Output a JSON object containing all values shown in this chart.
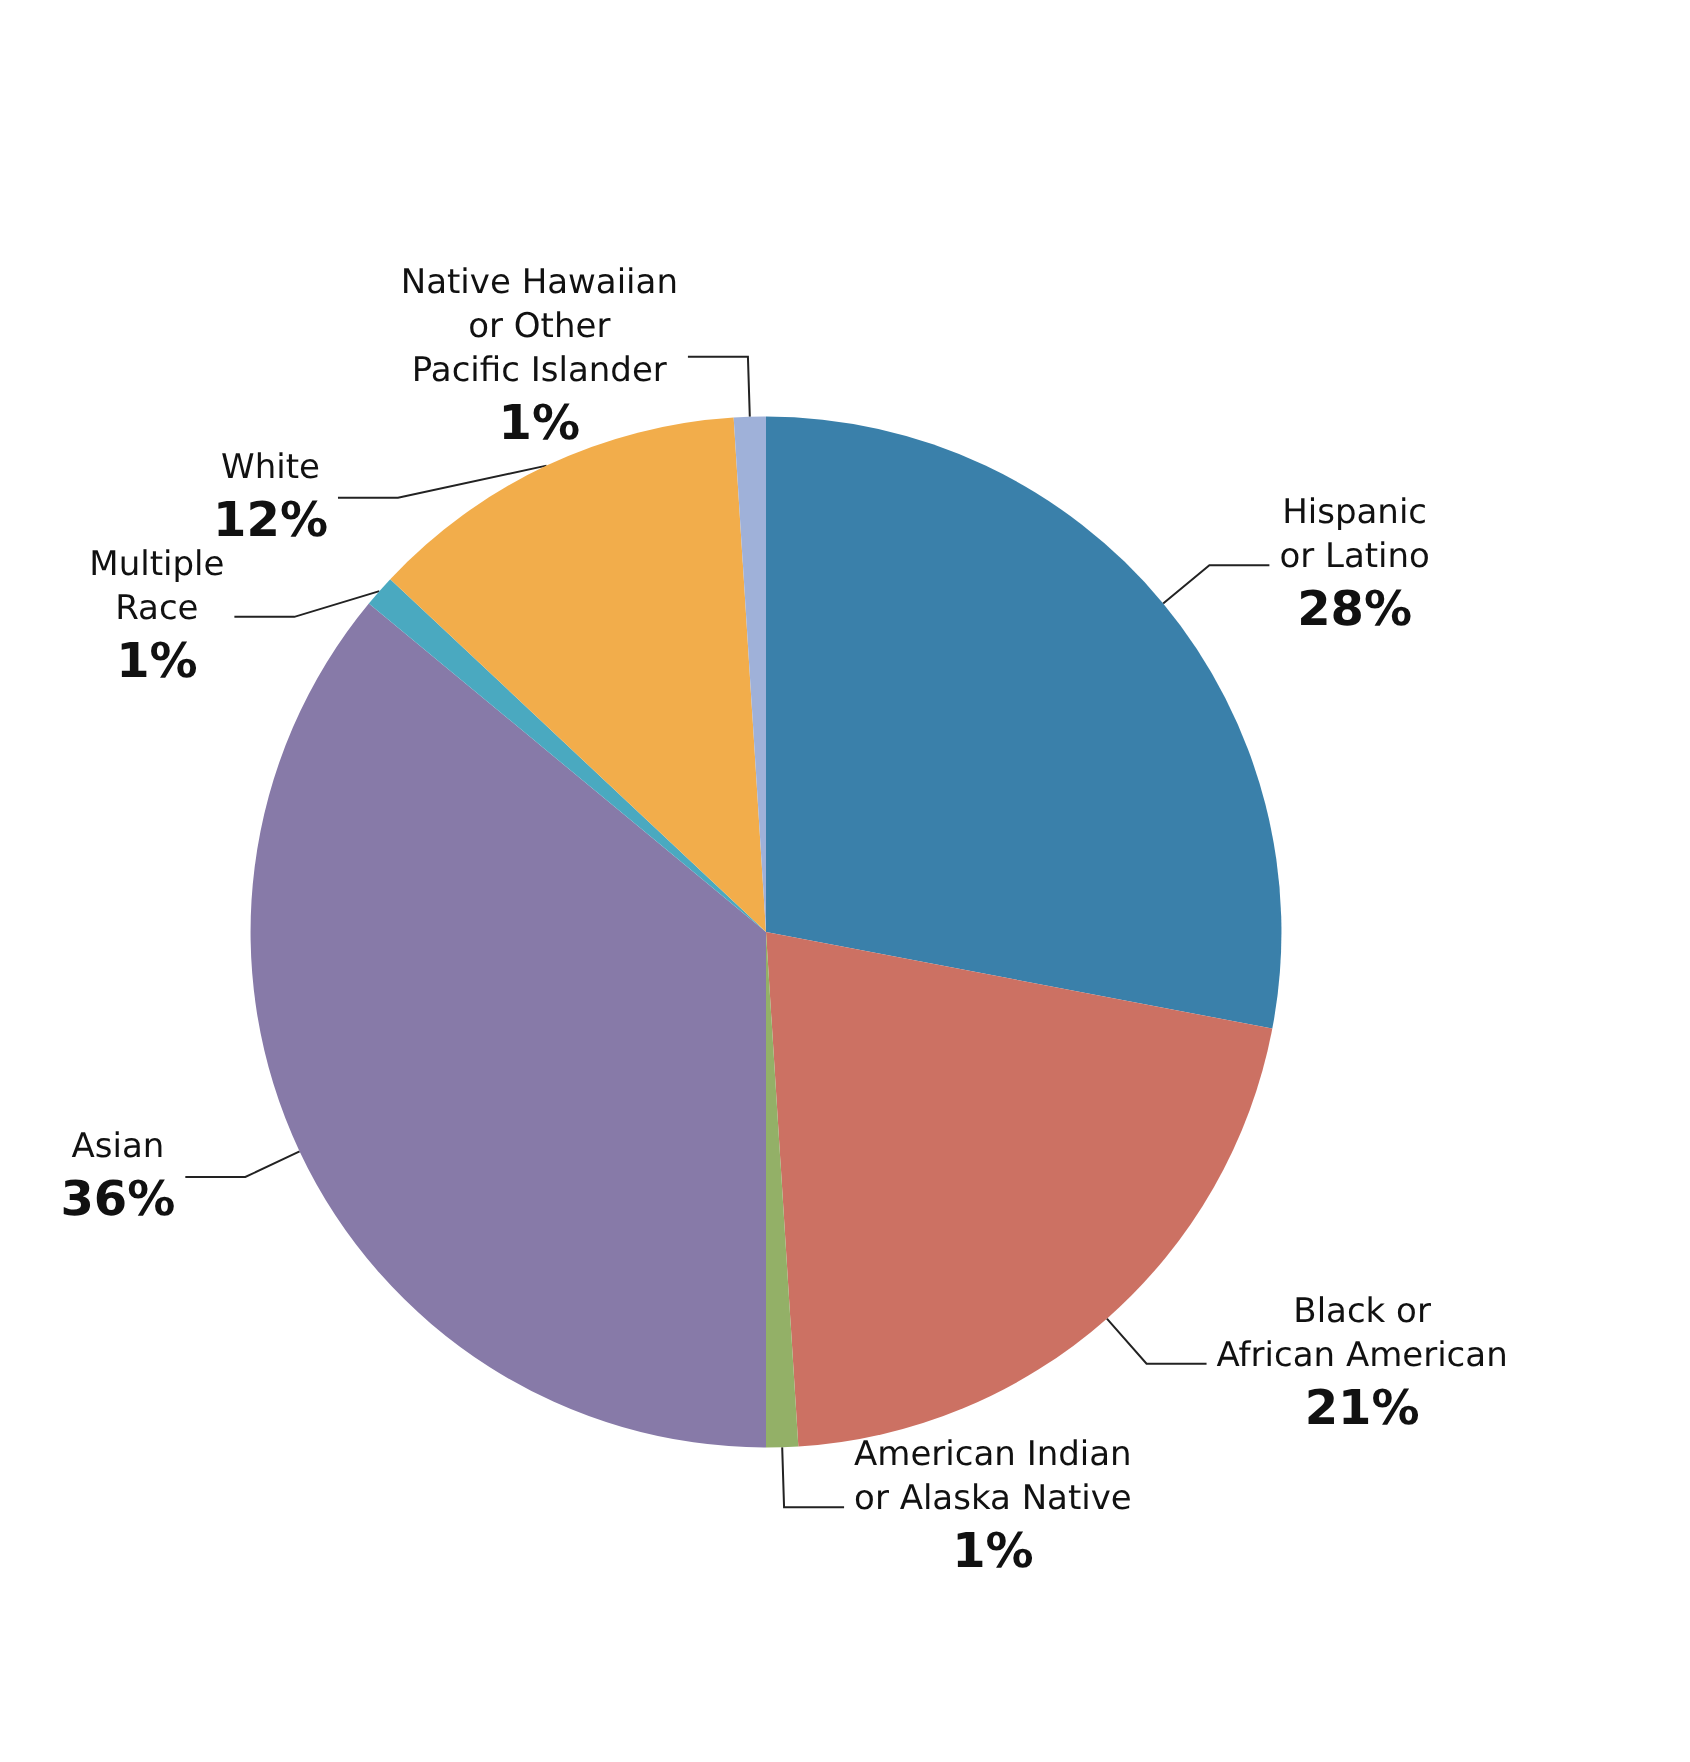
{
  "chart_data": {
    "type": "pie",
    "categories": [
      "Hispanic\nor Latino",
      "Black or\nAfrican American",
      "American Indian\nor Alaska Native",
      "Asian",
      "Multiple\nRace",
      "White",
      "Native Hawaiian\nor Other\nPacific Islander"
    ],
    "values": [
      28,
      21,
      1,
      36,
      1,
      12,
      1
    ],
    "value_labels": [
      "28%",
      "21%",
      "1%",
      "36%",
      "1%",
      "12%",
      "1%"
    ],
    "colors": [
      "#3a80aa",
      "#cc7163",
      "#93b067",
      "#877aa8",
      "#4aa9c0",
      "#f2ad4b",
      "#9fb1d9"
    ],
    "legend": false
  }
}
